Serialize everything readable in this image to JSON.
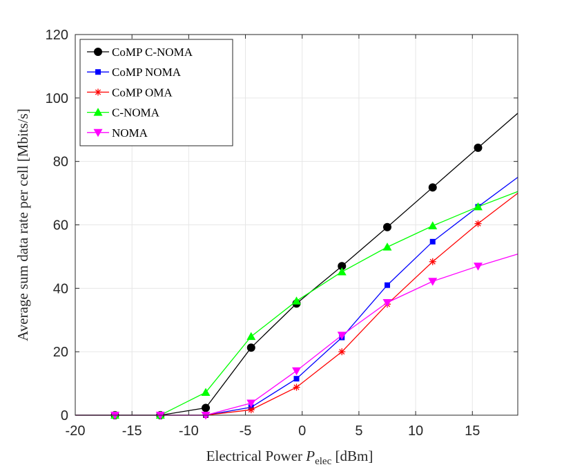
{
  "chart_data": {
    "type": "line",
    "xlabel_main": "Electrical Power ",
    "xlabel_var": "P",
    "xlabel_sub": "elec",
    "xlabel_unit": " [dBm]",
    "ylabel": "Average sum data rate per cell [Mbits/s]",
    "xlim": [
      -20,
      19
    ],
    "ylim": [
      0,
      120
    ],
    "xticks": [
      -20,
      -15,
      -10,
      -5,
      0,
      5,
      10,
      15
    ],
    "yticks": [
      0,
      20,
      40,
      60,
      80,
      100,
      120
    ],
    "grid": true,
    "legend_position": "top-left",
    "x": [
      -20,
      -16.5,
      -12.5,
      -8.5,
      -4.5,
      -0.5,
      3.5,
      7.5,
      11.5,
      15.5,
      19
    ],
    "series": [
      {
        "name": "CoMP C-NOMA",
        "color": "#000000",
        "marker": "circle",
        "values": [
          0,
          0,
          0,
          2.3,
          21.3,
          35.2,
          47.0,
          59.3,
          71.8,
          84.3,
          95.2
        ]
      },
      {
        "name": "CoMP NOMA",
        "color": "#0000ff",
        "marker": "square",
        "values": [
          0,
          0,
          0,
          0,
          2.5,
          11.5,
          24.5,
          41.0,
          54.7,
          65.7,
          75.0
        ]
      },
      {
        "name": "CoMP OMA",
        "color": "#ff0000",
        "marker": "asterisk",
        "values": [
          0,
          0,
          0,
          0,
          1.7,
          8.8,
          20.0,
          35.0,
          48.4,
          60.4,
          70.0
        ]
      },
      {
        "name": "C-NOMA",
        "color": "#00ff00",
        "marker": "triangle-up",
        "values": [
          0,
          0,
          0,
          7.2,
          24.8,
          36.0,
          45.2,
          53.0,
          59.7,
          65.7,
          70.5
        ]
      },
      {
        "name": "NOMA",
        "color": "#ff00ff",
        "marker": "triangle-down",
        "values": [
          0,
          0,
          0,
          0,
          3.8,
          14.0,
          25.2,
          35.5,
          42.2,
          47.0,
          50.8
        ]
      }
    ]
  }
}
